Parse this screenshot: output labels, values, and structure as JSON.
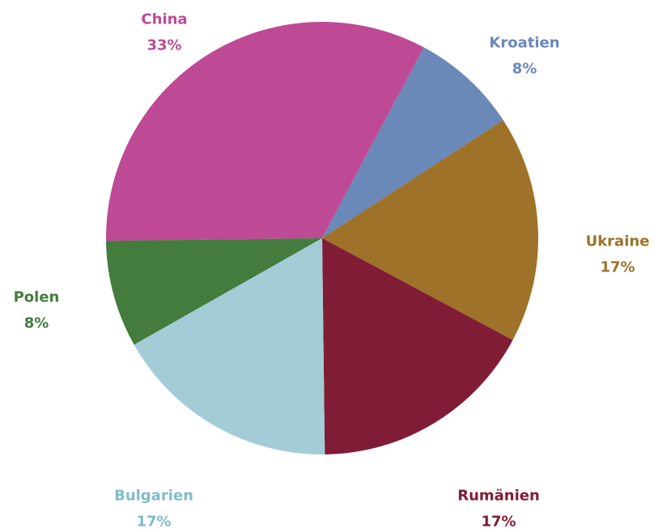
{
  "chart_data": {
    "type": "pie",
    "title": "",
    "legend": "none",
    "slices": [
      {
        "label": "China",
        "value": 33,
        "value_label": "33%",
        "color": "#be4a96"
      },
      {
        "label": "Kroatien",
        "value": 8,
        "value_label": "8%",
        "color": "#6a88b8"
      },
      {
        "label": "Ukraine",
        "value": 17,
        "value_label": "17%",
        "color": "#9e7229"
      },
      {
        "label": "Rumänien",
        "value": 17,
        "value_label": "17%",
        "color": "#811c36"
      },
      {
        "label": "Bulgarien",
        "value": 17,
        "value_label": "17%",
        "color": "#a3ccd6"
      },
      {
        "label": "Polen",
        "value": 8,
        "value_label": "8%",
        "color": "#437c3d"
      }
    ],
    "label_colors": {
      "China": "#be4a96",
      "Kroatien": "#6a88b8",
      "Ukraine": "#9e7229",
      "Rumänien": "#811c36",
      "Bulgarien": "#7fbccb",
      "Polen": "#437c3d"
    }
  }
}
